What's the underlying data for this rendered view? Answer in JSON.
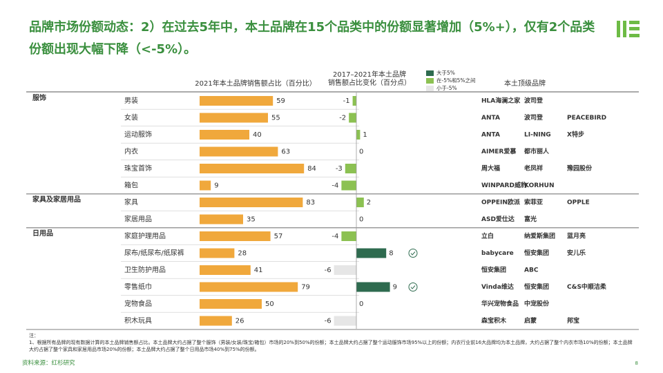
{
  "title": "品牌市场份额动态：2）在过去5年中，本土品牌在15个品类中的份额显著增加（5%+），仅有2个品类份额出现大幅下降（<-5%）。",
  "chart_data": {
    "type": "bar",
    "groups": [
      {
        "name": "服饰",
        "categories": [
          "男装",
          "女装",
          "运动服饰",
          "内衣",
          "珠宝首饰",
          "箱包"
        ]
      },
      {
        "name": "家具及家居用品",
        "categories": [
          "家具",
          "家居用品"
        ]
      },
      {
        "name": "日用品",
        "categories": [
          "家庭护理用品",
          "尿布/纸尿布/纸尿裤",
          "卫生防护用品",
          "零售纸巾",
          "宠物食品",
          "积木玩具"
        ]
      }
    ],
    "share": {
      "name": "2021年本土品牌销售额占比（百分比）",
      "color": "#f0a83c",
      "xlim": [
        0,
        100
      ],
      "values": [
        59,
        55,
        40,
        63,
        84,
        9,
        83,
        35,
        57,
        28,
        41,
        79,
        50,
        26
      ]
    },
    "change": {
      "name": [
        "2017–2021年本土品牌",
        "销售额占比变化（百分点）"
      ],
      "xlim": [
        -10,
        10
      ],
      "values": [
        -1,
        -2,
        1,
        0,
        -3,
        -4,
        2,
        0,
        -4,
        8,
        -6,
        9,
        0,
        -6
      ],
      "classes": [
        1,
        1,
        1,
        1,
        1,
        1,
        1,
        1,
        1,
        0,
        2,
        0,
        1,
        2
      ],
      "checked": [
        false,
        false,
        false,
        false,
        false,
        false,
        false,
        false,
        false,
        true,
        false,
        true,
        false,
        false
      ]
    },
    "legend": [
      {
        "name": "大于5%",
        "color": "#2e6b4f"
      },
      {
        "name": "在-5%和5%之间",
        "color": "#8cc152"
      },
      {
        "name": "小于-5%",
        "color": "#e6e6e6"
      }
    ],
    "brands_header": "本土顶级品牌",
    "brands": [
      [
        "HLA海澜之家",
        "波司登"
      ],
      [
        "ANTA",
        "波司登",
        "PEACEBIRD"
      ],
      [
        "ANTA",
        "LI-NING",
        "X特步"
      ],
      [
        "AIMER爱慕",
        "都市丽人"
      ],
      [
        "周大福",
        "老凤祥",
        "豫园股份"
      ],
      [
        "WINPARD威豹",
        "KORHUN"
      ],
      [
        "OPPEIN欧派",
        "索菲亚",
        "OPPLE"
      ],
      [
        "ASD爱仕达",
        "富光"
      ],
      [
        "立白",
        "纳爱斯集团",
        "蓝月亮"
      ],
      [
        "babycare",
        "恒安集团",
        "安儿乐"
      ],
      [
        "恒安集团",
        "ABC"
      ],
      [
        "Vinda维达",
        "恒安集团",
        "C&S中顺洁柔"
      ],
      [
        "华兴宠物食品",
        "中宠股份"
      ],
      [
        "森宝积木",
        "启蒙",
        "邦宝"
      ]
    ]
  },
  "note_label": "注：",
  "note": "1、根据所有品牌的现有数据计算的本土品牌销售额占比。本土品牌大约占据了整个服饰（男装/女装/珠宝/箱包）市场的20%到50%的份额；本土品牌大约占据了整个运动服饰市场95%以上的份额；内衣行业前16大品牌均为本土品牌，大约占据了整个内衣市场10%的份额；本土品牌大约占据了整个家具和家居用品市场20%的份额；本土品牌大约占据了整个日用品市场40%到75%的份额。",
  "source": "资料来源：红杉研究",
  "page": "8"
}
